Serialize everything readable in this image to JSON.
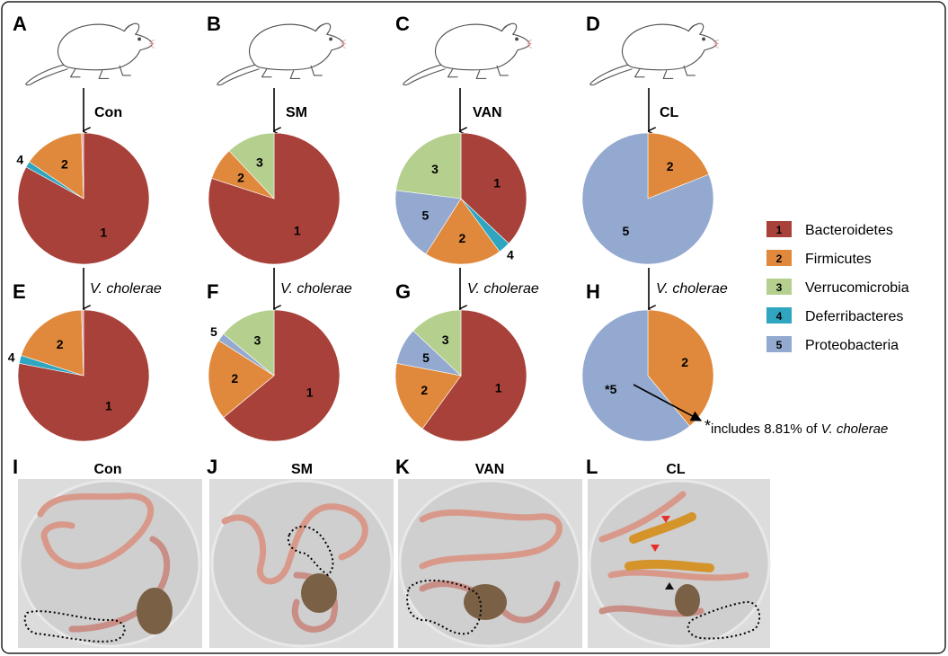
{
  "panels_top": [
    {
      "letter": "A",
      "treatment": "Con"
    },
    {
      "letter": "B",
      "treatment": "SM"
    },
    {
      "letter": "C",
      "treatment": "VAN"
    },
    {
      "letter": "D",
      "treatment": "CL"
    }
  ],
  "panels_mid": [
    {
      "letter": "E",
      "infection": "V. cholerae"
    },
    {
      "letter": "F",
      "infection": "V. cholerae"
    },
    {
      "letter": "G",
      "infection": "V. cholerae"
    },
    {
      "letter": "H",
      "infection": "V. cholerae"
    }
  ],
  "panels_photo": [
    {
      "letter": "I",
      "treatment": "Con"
    },
    {
      "letter": "J",
      "treatment": "SM"
    },
    {
      "letter": "K",
      "treatment": "VAN"
    },
    {
      "letter": "L",
      "treatment": "CL"
    }
  ],
  "legend": [
    {
      "num": "1",
      "label": "Bacteroidetes",
      "color": "#a8413a"
    },
    {
      "num": "2",
      "label": "Firmicutes",
      "color": "#e0893c"
    },
    {
      "num": "3",
      "label": "Verrucomicrobia",
      "color": "#b4cf8e"
    },
    {
      "num": "4",
      "label": "Deferribacteres",
      "color": "#2fa5c0"
    },
    {
      "num": "5",
      "label": "Proteobacteria",
      "color": "#93a9cf"
    }
  ],
  "footnote": {
    "star": "*",
    "prefix": "includes 8.81% of ",
    "italic": "V. cholerae"
  },
  "chart_data": [
    {
      "type": "pie",
      "panel": "A",
      "slices": [
        {
          "label": "1",
          "value": 83.0,
          "color": "#a8413a"
        },
        {
          "label": "4",
          "value": 1.5,
          "color": "#2fa5c0"
        },
        {
          "label": "2",
          "value": 15.0,
          "color": "#e0893c"
        },
        {
          "label": "",
          "value": 0.5,
          "color": "#e7a0a0"
        }
      ]
    },
    {
      "type": "pie",
      "panel": "B",
      "slices": [
        {
          "label": "1",
          "value": 80.0,
          "color": "#a8413a"
        },
        {
          "label": "2",
          "value": 8.0,
          "color": "#e0893c"
        },
        {
          "label": "3",
          "value": 12.0,
          "color": "#b4cf8e"
        }
      ]
    },
    {
      "type": "pie",
      "panel": "C",
      "slices": [
        {
          "label": "1",
          "value": 37.0,
          "color": "#a8413a"
        },
        {
          "label": "4",
          "value": 3.0,
          "color": "#2fa5c0"
        },
        {
          "label": "2",
          "value": 19.0,
          "color": "#e0893c"
        },
        {
          "label": "5",
          "value": 18.0,
          "color": "#93a9cf"
        },
        {
          "label": "3",
          "value": 23.0,
          "color": "#b4cf8e"
        }
      ]
    },
    {
      "type": "pie",
      "panel": "D",
      "slices": [
        {
          "label": "2",
          "value": 19.0,
          "color": "#e0893c"
        },
        {
          "label": "5",
          "value": 81.0,
          "color": "#93a9cf"
        }
      ]
    },
    {
      "type": "pie",
      "panel": "E",
      "slices": [
        {
          "label": "1",
          "value": 78.0,
          "color": "#a8413a"
        },
        {
          "label": "4",
          "value": 2.0,
          "color": "#2fa5c0"
        },
        {
          "label": "2",
          "value": 19.5,
          "color": "#e0893c"
        },
        {
          "label": "",
          "value": 0.5,
          "color": "#e7a0a0"
        }
      ]
    },
    {
      "type": "pie",
      "panel": "F",
      "slices": [
        {
          "label": "1",
          "value": 64.0,
          "color": "#a8413a"
        },
        {
          "label": "2",
          "value": 20.0,
          "color": "#e0893c"
        },
        {
          "label": "5",
          "value": 2.0,
          "color": "#93a9cf"
        },
        {
          "label": "3",
          "value": 14.0,
          "color": "#b4cf8e"
        }
      ]
    },
    {
      "type": "pie",
      "panel": "G",
      "slices": [
        {
          "label": "1",
          "value": 60.0,
          "color": "#a8413a"
        },
        {
          "label": "2",
          "value": 18.0,
          "color": "#e0893c"
        },
        {
          "label": "5",
          "value": 9.0,
          "color": "#93a9cf"
        },
        {
          "label": "3",
          "value": 13.0,
          "color": "#b4cf8e"
        }
      ]
    },
    {
      "type": "pie",
      "panel": "H",
      "slices": [
        {
          "label": "2",
          "value": 39.0,
          "color": "#e0893c"
        },
        {
          "label": "*5",
          "value": 61.0,
          "color": "#93a9cf"
        }
      ]
    }
  ]
}
